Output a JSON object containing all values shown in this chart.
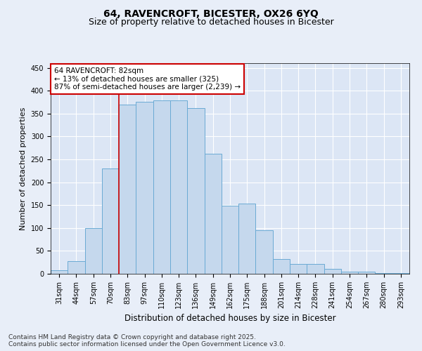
{
  "title": "64, RAVENCROFT, BICESTER, OX26 6YQ",
  "subtitle": "Size of property relative to detached houses in Bicester",
  "xlabel": "Distribution of detached houses by size in Bicester",
  "ylabel": "Number of detached properties",
  "categories": [
    "31sqm",
    "44sqm",
    "57sqm",
    "70sqm",
    "83sqm",
    "97sqm",
    "110sqm",
    "123sqm",
    "136sqm",
    "149sqm",
    "162sqm",
    "175sqm",
    "188sqm",
    "201sqm",
    "214sqm",
    "228sqm",
    "241sqm",
    "254sqm",
    "267sqm",
    "280sqm",
    "293sqm"
  ],
  "values": [
    8,
    28,
    100,
    230,
    370,
    375,
    378,
    378,
    362,
    262,
    148,
    154,
    95,
    32,
    22,
    22,
    10,
    4,
    4,
    2,
    2
  ],
  "bar_color": "#c5d8ed",
  "bar_edge_color": "#6aaad4",
  "annotation_text_line1": "64 RAVENCROFT: 82sqm",
  "annotation_text_line2": "← 13% of detached houses are smaller (325)",
  "annotation_text_line3": "87% of semi-detached houses are larger (2,239) →",
  "annotation_box_color": "#ffffff",
  "annotation_border_color": "#cc0000",
  "ylim": [
    0,
    460
  ],
  "yticks": [
    0,
    50,
    100,
    150,
    200,
    250,
    300,
    350,
    400,
    450
  ],
  "background_color": "#e8eef8",
  "plot_bg_color": "#dce6f5",
  "grid_color": "#ffffff",
  "footer_line1": "Contains HM Land Registry data © Crown copyright and database right 2025.",
  "footer_line2": "Contains public sector information licensed under the Open Government Licence v3.0.",
  "title_fontsize": 10,
  "subtitle_fontsize": 9,
  "xlabel_fontsize": 8.5,
  "ylabel_fontsize": 8,
  "tick_fontsize": 7,
  "annotation_fontsize": 7.5,
  "footer_fontsize": 6.5
}
